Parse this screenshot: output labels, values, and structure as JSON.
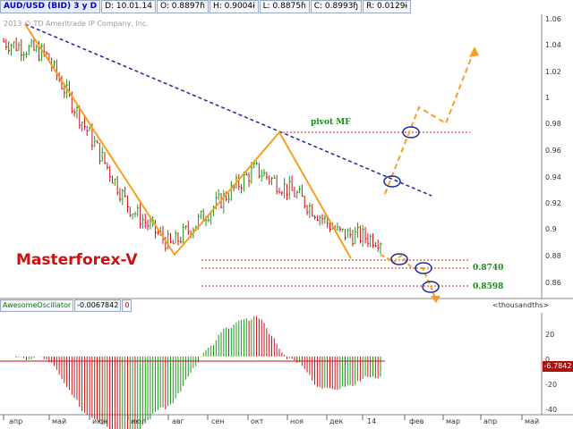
{
  "header": {
    "symbol": "AUD/USD (BID) 3 y D",
    "date": "D: 10.01.14",
    "open": "O: 0.8897ɦ",
    "high": "H: 0.9004ɨ",
    "low": "L: 0.8875ɦ",
    "close": "C: 0.8993ɧ",
    "range": "R: 0.0129ɨ"
  },
  "copyright": "2013 © TD Ameritrade IP Company, Inc.",
  "brand": "Masterforex-V",
  "annotations": {
    "pivot": "pivot MF",
    "level1": "0.8740",
    "level2": "0.8598"
  },
  "price_axis": [
    "1.06",
    "1.04",
    "1.02",
    "1",
    "0.98",
    "0.96",
    "0.94",
    "0.92",
    "0.9",
    "0.88",
    "0.86"
  ],
  "oscillator": {
    "name": "AwesomeOscillator",
    "value": "-0.0067842",
    "zero": "0",
    "units": "<thousandths>",
    "axis": [
      "20",
      "0",
      "-20",
      "-40"
    ],
    "last_badge": "-6.7842"
  },
  "time_axis": [
    "апр",
    "май",
    "июн",
    "июл",
    "авг",
    "сен",
    "окт",
    "ноя",
    "дек",
    "14",
    "фев",
    "мар",
    "апр",
    "май"
  ],
  "colors": {
    "up": "#1a9a1a",
    "down": "#cc1111",
    "zigzag": "#f5a020",
    "trend": "#1a2a9a",
    "level": "#cc2222"
  },
  "chart_data": {
    "type": "line",
    "title": "AUD/USD (BID) 3 y D",
    "xlabel": "",
    "ylabel": "",
    "ylim": [
      0.85,
      1.07
    ],
    "x": [
      "апр",
      "май",
      "июн",
      "июл",
      "авг",
      "сен",
      "окт",
      "ноя",
      "дек",
      "14"
    ],
    "series": [
      {
        "values": [
          1.05,
          1.04,
          0.98,
          0.92,
          0.89,
          0.92,
          0.95,
          0.93,
          0.9,
          0.895
        ]
      }
    ],
    "zigzag": [
      1.057,
      0.885,
      0.976,
      0.883
    ],
    "levels": [
      0.976,
      0.8805,
      0.874,
      0.8598
    ],
    "oscillator": {
      "name": "AwesomeOscillator",
      "ylim": [
        -40,
        30
      ],
      "last": -6.7842
    }
  }
}
